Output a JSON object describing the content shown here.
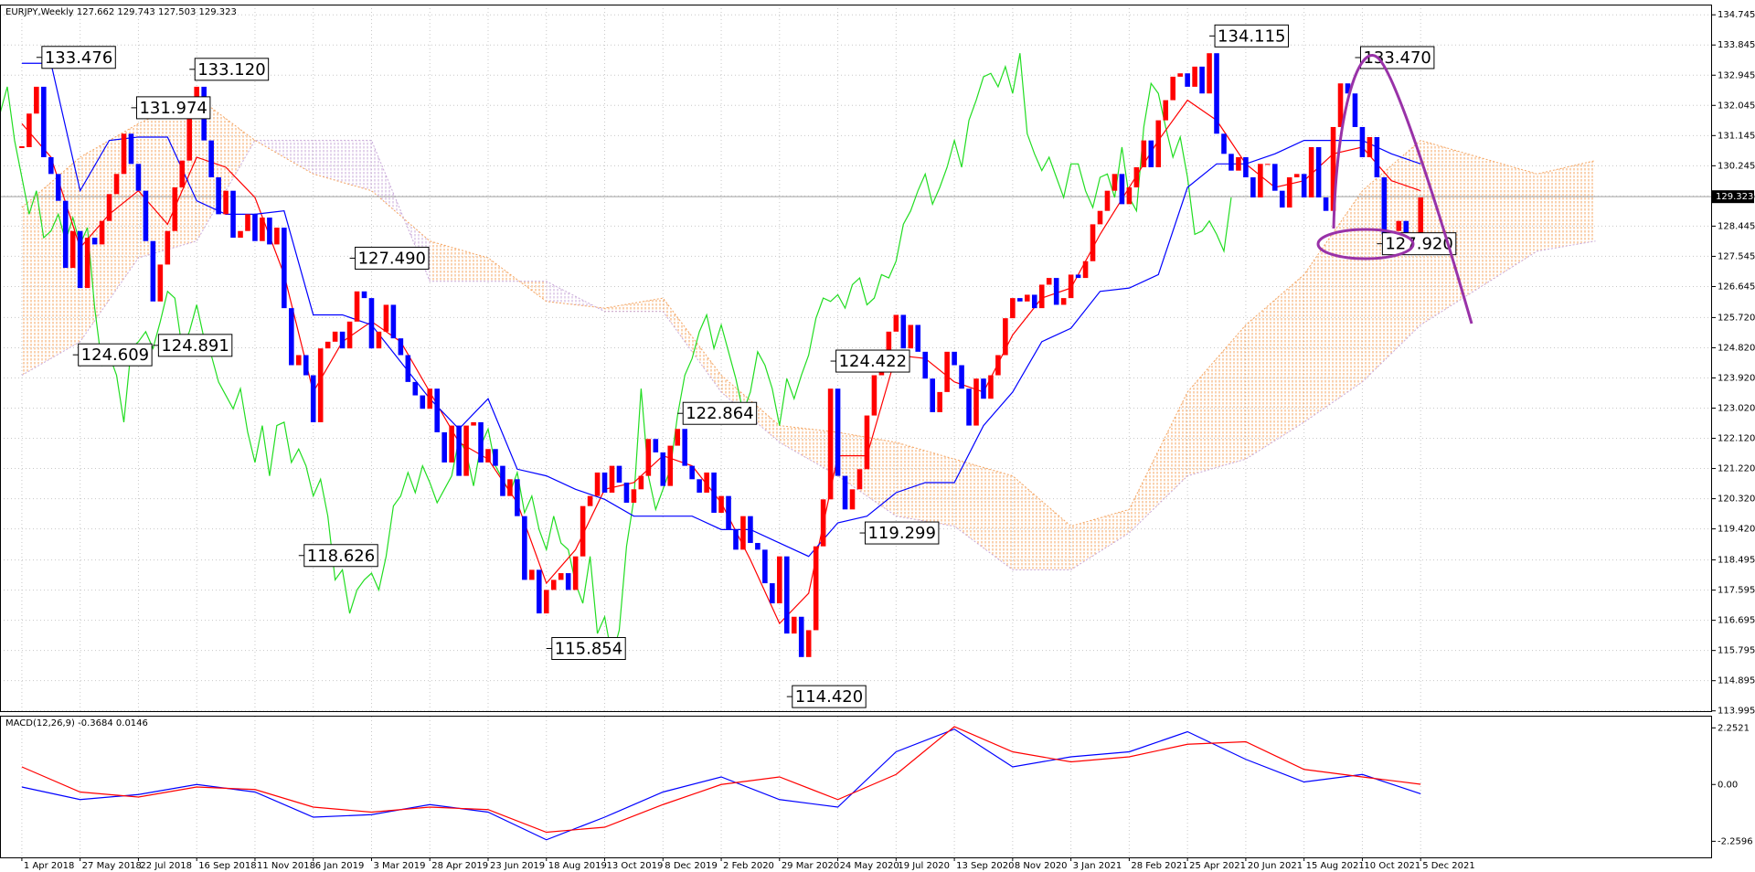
{
  "chart_data": {
    "type": "candlestick",
    "title": "EURJPY,Weekly  127.662 129.743 127.503 129.323",
    "xlim": [
      -3,
      232
    ],
    "xticks": [
      {
        "value": 0,
        "label": "1 Apr 2018"
      },
      {
        "value": 8,
        "label": "27 May 2018"
      },
      {
        "value": 16,
        "label": "22 Jul 2018"
      },
      {
        "value": 24,
        "label": "16 Sep 2018"
      },
      {
        "value": 32,
        "label": "11 Nov 2018"
      },
      {
        "value": 40,
        "label": "6 Jan 2019"
      },
      {
        "value": 48,
        "label": "3 Mar 2019"
      },
      {
        "value": 56,
        "label": "28 Apr 2019"
      },
      {
        "value": 64,
        "label": "23 Jun 2019"
      },
      {
        "value": 72,
        "label": "18 Aug 2019"
      },
      {
        "value": 80,
        "label": "13 Oct 2019"
      },
      {
        "value": 88,
        "label": "8 Dec 2019"
      },
      {
        "value": 96,
        "label": "2 Feb 2020"
      },
      {
        "value": 104,
        "label": "29 Mar 2020"
      },
      {
        "value": 112,
        "label": "24 May 2020"
      },
      {
        "value": 120,
        "label": "19 Jul 2020"
      },
      {
        "value": 128,
        "label": "13 Sep 2020"
      },
      {
        "value": 136,
        "label": "8 Nov 2020"
      },
      {
        "value": 144,
        "label": "3 Jan 2021"
      },
      {
        "value": 152,
        "label": "28 Feb 2021"
      },
      {
        "value": 160,
        "label": "25 Apr 2021"
      },
      {
        "value": 168,
        "label": "20 Jun 2021"
      },
      {
        "value": 176,
        "label": "15 Aug 2021"
      },
      {
        "value": 184,
        "label": "10 Oct 2021"
      },
      {
        "value": 192,
        "label": "5 Dec 2021"
      }
    ],
    "ylim": [
      113.96,
      135.05
    ],
    "yticks": [
      134.745,
      133.845,
      132.945,
      132.045,
      131.145,
      130.245,
      129.345,
      128.445,
      127.545,
      126.645,
      {
        "value": 125.72,
        "label": "125.720"
      },
      {
        "value": 124.82,
        "label": "124.820"
      },
      {
        "value": 123.92,
        "label": "123.920"
      },
      {
        "value": 123.02,
        "label": "123.020"
      },
      {
        "value": 122.12,
        "label": "122.120"
      },
      {
        "value": 121.22,
        "label": "121.220"
      },
      {
        "value": 120.32,
        "label": "120.320"
      },
      {
        "value": 119.42,
        "label": "119.420"
      },
      118.495,
      117.595,
      116.695,
      115.795,
      114.895,
      113.995
    ],
    "grid": true,
    "up_color": "#ff0000",
    "down_color": "#0000ff",
    "close": [
      130.8,
      131.8,
      132.6,
      130.5,
      130.0,
      129.2,
      127.2,
      128.3,
      126.6,
      128.1,
      127.9,
      128.6,
      129.4,
      130.0,
      131.2,
      130.3,
      129.5,
      128.0,
      126.2,
      127.3,
      128.3,
      129.6,
      130.4,
      131.8,
      132.6,
      131.0,
      129.9,
      128.8,
      129.5,
      128.1,
      128.3,
      128.8,
      128.0,
      128.7,
      127.9,
      128.4,
      126.0,
      124.3,
      124.6,
      124.0,
      122.6,
      124.8,
      125.0,
      125.3,
      124.8,
      125.6,
      126.5,
      126.3,
      124.8,
      125.3,
      126.1,
      125.1,
      124.6,
      123.8,
      123.4,
      123.0,
      123.6,
      122.3,
      121.4,
      122.5,
      121.0,
      122.5,
      122.6,
      121.4,
      121.8,
      121.3,
      120.4,
      120.9,
      119.8,
      117.9,
      118.2,
      116.9,
      117.6,
      117.9,
      118.1,
      117.6,
      118.6,
      120.1,
      120.4,
      121.1,
      120.5,
      121.3,
      120.8,
      120.2,
      120.6,
      121.0,
      122.1,
      121.7,
      120.7,
      121.9,
      122.4,
      121.3,
      120.9,
      120.5,
      121.1,
      119.9,
      120.4,
      119.4,
      118.8,
      119.8,
      119.0,
      118.8,
      117.8,
      117.2,
      118.6,
      116.3,
      116.8,
      115.6,
      116.4,
      118.9,
      120.3,
      123.6,
      121.0,
      120.0,
      120.6,
      121.2,
      122.8,
      124.0,
      124.5,
      125.3,
      125.8,
      124.8,
      125.5,
      124.7,
      123.9,
      122.9,
      123.5,
      124.7,
      124.3,
      123.6,
      122.5,
      123.9,
      123.3,
      124.0,
      124.6,
      125.7,
      126.3,
      126.2,
      126.4,
      126.0,
      126.7,
      126.9,
      126.1,
      126.3,
      127.0,
      126.9,
      127.4,
      128.5,
      128.9,
      129.5,
      130.0,
      129.1,
      129.6,
      130.2,
      131.0,
      130.2,
      131.6,
      132.2,
      132.9,
      133.0,
      132.6,
      133.2,
      132.4,
      133.6,
      131.2,
      130.6,
      130.1,
      130.5,
      129.9,
      129.3,
      130.3,
      130.3,
      129.5,
      129.0,
      129.9,
      130.0,
      129.3,
      130.8,
      129.3,
      128.9,
      131.4,
      132.7,
      132.4,
      131.4,
      130.5,
      131.1,
      129.9,
      128.2,
      128.3,
      128.6,
      128.2,
      127.7,
      129.3
    ],
    "chikou_color": "#22dd22",
    "tenkan": {
      "color": "#ff0000",
      "x": [
        0,
        4,
        8,
        12,
        16,
        20,
        24,
        28,
        32,
        36,
        40,
        44,
        48,
        52,
        56,
        60,
        64,
        68,
        72,
        76,
        80,
        84,
        88,
        92,
        96,
        100,
        104,
        108,
        112,
        116,
        120,
        124,
        128,
        132,
        136,
        140,
        144,
        148,
        152,
        156,
        160,
        164,
        168,
        172,
        176,
        180,
        184,
        188,
        192
      ],
      "values": [
        131.5,
        130.5,
        127.8,
        128.8,
        129.5,
        128.5,
        130.5,
        130.2,
        129.3,
        127.0,
        123.5,
        125.0,
        125.6,
        125.0,
        123.5,
        122.0,
        121.5,
        120.2,
        117.8,
        118.8,
        120.6,
        120.8,
        121.6,
        121.3,
        120.2,
        118.5,
        116.6,
        117.5,
        121.6,
        121.6,
        124.6,
        124.5,
        123.8,
        123.5,
        125.2,
        126.3,
        126.6,
        128.2,
        129.6,
        131.0,
        132.2,
        131.6,
        130.3,
        129.6,
        129.8,
        130.6,
        130.8,
        129.8,
        129.5
      ]
    },
    "kijun": {
      "color": "#0000ff",
      "x": [
        0,
        4,
        8,
        12,
        16,
        20,
        24,
        28,
        32,
        36,
        40,
        44,
        48,
        52,
        56,
        60,
        64,
        68,
        72,
        76,
        80,
        84,
        88,
        92,
        96,
        100,
        104,
        108,
        112,
        116,
        120,
        124,
        128,
        132,
        136,
        140,
        144,
        148,
        152,
        156,
        160,
        164,
        168,
        172,
        176,
        180,
        184,
        188,
        192
      ],
      "values": [
        133.3,
        133.3,
        129.5,
        131.0,
        131.1,
        131.1,
        129.2,
        128.8,
        128.8,
        128.9,
        125.8,
        125.8,
        125.5,
        124.4,
        123.3,
        122.4,
        123.3,
        121.2,
        121.0,
        120.6,
        120.3,
        119.8,
        119.8,
        119.8,
        119.4,
        119.4,
        119.0,
        118.6,
        119.6,
        119.8,
        120.5,
        120.8,
        120.8,
        122.5,
        123.5,
        125.0,
        125.4,
        126.5,
        126.6,
        127.0,
        129.6,
        130.3,
        130.3,
        130.6,
        131.0,
        131.0,
        131.0,
        130.6,
        130.3
      ]
    },
    "cloud": {
      "bull_color": "#f4a460",
      "bear_color": "#c8a8d8",
      "x": [
        0,
        8,
        16,
        24,
        32,
        40,
        48,
        56,
        64,
        72,
        80,
        88,
        96,
        104,
        112,
        120,
        128,
        136,
        144,
        152,
        160,
        168,
        176,
        184,
        192,
        200,
        208,
        216
      ],
      "span_a": [
        129.0,
        130.5,
        131.5,
        132.3,
        131.0,
        130.0,
        129.5,
        128.0,
        127.5,
        126.2,
        126.0,
        126.3,
        124.0,
        122.5,
        122.3,
        122.0,
        121.5,
        121.0,
        119.5,
        120.0,
        123.5,
        125.5,
        127.0,
        129.5,
        131.0,
        130.5,
        130.0,
        130.4
      ],
      "span_b": [
        124.0,
        125.0,
        127.5,
        128.0,
        131.0,
        131.0,
        131.0,
        126.8,
        126.8,
        126.8,
        125.9,
        125.9,
        123.5,
        122.0,
        121.0,
        119.8,
        119.5,
        118.2,
        118.2,
        119.3,
        121.0,
        121.5,
        122.6,
        123.8,
        125.5,
        126.6,
        127.7,
        128.0
      ]
    },
    "last_price": 129.323,
    "annotations": [
      {
        "x": 2,
        "value": 133.476,
        "label": "133.476"
      },
      {
        "x": 15,
        "value": 131.974,
        "label": "131.974"
      },
      {
        "x": 23,
        "value": 133.12,
        "label": "133.120"
      },
      {
        "x": 7,
        "value": 124.609,
        "label": "124.609"
      },
      {
        "x": 18,
        "value": 124.891,
        "label": "124.891"
      },
      {
        "x": 45,
        "value": 127.49,
        "label": "127.490"
      },
      {
        "x": 38,
        "value": 118.626,
        "label": "118.626"
      },
      {
        "x": 72,
        "value": 115.854,
        "label": "115.854"
      },
      {
        "x": 90,
        "value": 122.864,
        "label": "122.864"
      },
      {
        "x": 105,
        "value": 114.42,
        "label": "114.420"
      },
      {
        "x": 111,
        "value": 124.422,
        "label": "124.422"
      },
      {
        "x": 115,
        "value": 119.299,
        "label": "119.299"
      },
      {
        "x": 163,
        "value": 134.115,
        "label": "134.115"
      },
      {
        "x": 183,
        "value": 133.47,
        "label": "133.470"
      },
      {
        "x": 186,
        "value": 127.92,
        "label": "127.920"
      }
    ],
    "macd": {
      "label": "MACD(12,26,9) -0.3684 0.0146",
      "ylim": [
        -2.9,
        2.7
      ],
      "yticks": [
        2.2521,
        {
          "value": 0,
          "label": "0.00"
        },
        -2.2596
      ],
      "main_color": "#0000ff",
      "signal_color": "#ff0000",
      "x": [
        0,
        8,
        16,
        24,
        32,
        40,
        48,
        56,
        64,
        72,
        80,
        88,
        96,
        104,
        112,
        120,
        128,
        136,
        144,
        152,
        160,
        168,
        176,
        184,
        192
      ],
      "main": [
        -0.1,
        -0.6,
        -0.4,
        0.0,
        -0.3,
        -1.3,
        -1.2,
        -0.8,
        -1.1,
        -2.2,
        -1.3,
        -0.3,
        0.3,
        -0.6,
        -0.9,
        1.3,
        2.2,
        0.7,
        1.1,
        1.3,
        2.1,
        1.0,
        0.1,
        0.4,
        -0.37
      ],
      "signal": [
        0.7,
        -0.3,
        -0.5,
        -0.1,
        -0.2,
        -0.9,
        -1.1,
        -0.9,
        -1.0,
        -1.9,
        -1.7,
        -0.8,
        0.0,
        0.3,
        -0.6,
        0.4,
        2.3,
        1.3,
        0.9,
        1.1,
        1.6,
        1.7,
        0.6,
        0.3,
        0.01
      ]
    }
  }
}
